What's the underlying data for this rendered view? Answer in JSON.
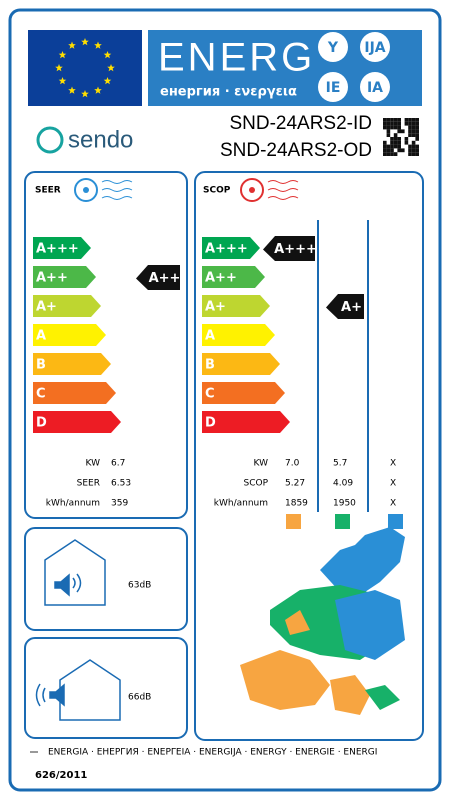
{
  "header": {
    "title": "ENERG",
    "subtitle": "енергия · ενεργεια",
    "languages": [
      "Y",
      "IJA",
      "IE",
      "IA"
    ]
  },
  "brand": "sendo",
  "models": [
    "SND-24ARS2-ID",
    "SND-24ARS2-OD"
  ],
  "seer": {
    "label": "SEER",
    "classes": [
      "A+++",
      "A++",
      "A+",
      "A",
      "B",
      "C",
      "D"
    ],
    "rating": "A++",
    "rows": [
      {
        "label": "KW",
        "value": "6.7"
      },
      {
        "label": "SEER",
        "value": "6.53"
      },
      {
        "label": "kWh/annum",
        "value": "359"
      }
    ]
  },
  "scop": {
    "label": "SCOP",
    "classes": [
      "A+++",
      "A++",
      "A+",
      "A",
      "B",
      "C",
      "D"
    ],
    "ratings": [
      "A+++",
      "A+"
    ],
    "rows": [
      {
        "label": "KW",
        "values": [
          "7.0",
          "5.7",
          "X"
        ]
      },
      {
        "label": "SCOP",
        "values": [
          "5.27",
          "4.09",
          "X"
        ]
      },
      {
        "label": "kWh/annum",
        "values": [
          "1859",
          "1950",
          "X"
        ]
      }
    ]
  },
  "noise": [
    "63dB",
    "66dB"
  ],
  "footer": {
    "languages": "ENERGIA · ЕНЕРГИЯ · ΕΝΕΡΓΕΙΑ · ENERGIJA · ENERGY · ENERGIE · ENERGI",
    "regulation": "626/2011"
  }
}
